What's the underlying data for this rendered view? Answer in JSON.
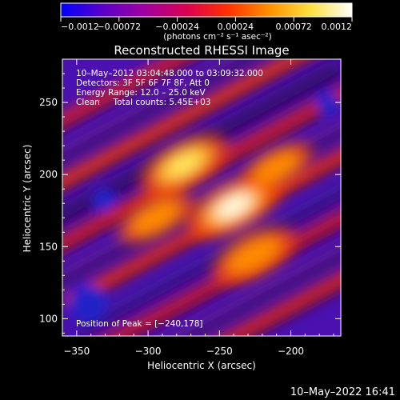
{
  "chart_data": {
    "type": "heatmap",
    "title": "Reconstructed RHESSI Image",
    "xlabel": "Heliocentric X (arcsec)",
    "ylabel": "Heliocentric Y (arcsec)",
    "xlim": [
      -360,
      -165
    ],
    "ylim": [
      88,
      280
    ],
    "x_ticks": [
      -350,
      -300,
      -250,
      -200
    ],
    "y_ticks": [
      100,
      150,
      200,
      250
    ],
    "x_tick_labels": [
      "−350",
      "−300",
      "−250",
      "−200"
    ],
    "y_tick_labels": [
      "100",
      "150",
      "200",
      "250"
    ],
    "colorbar": {
      "range": [
        -0.0012,
        0.0012
      ],
      "ticks": [
        -0.0012,
        -0.00072,
        -0.00024,
        0.00024,
        0.00072,
        0.0012
      ],
      "tick_labels": [
        "−0.0012",
        "−0.00072",
        "−0.00024",
        "0.00024",
        "0.00072",
        "0.0012"
      ],
      "unit_label": "(photons cm⁻² s⁻¹ asec⁻²)",
      "colors": [
        "#0000ff",
        "#5a00c8",
        "#a000a0",
        "#d80050",
        "#ff3000",
        "#ff9000",
        "#ffe040",
        "#ffffff"
      ]
    },
    "annotations": [
      "10–May–2012 03:04:48.000 to 03:09:32.000",
      "Detectors: 3F 5F 6F 7F 8F, Att 0",
      "Energy Range: 12.0 – 25.0 keV",
      "Clean     Total counts: 5.45E+03"
    ],
    "peak": {
      "label": "Position of Peak = [−240,178]",
      "x": -240,
      "y": 178,
      "value": 0.0012
    },
    "sources": [
      {
        "x": -240,
        "y": 178,
        "value": 0.0012
      },
      {
        "x": -275,
        "y": 207,
        "value": 0.001
      },
      {
        "x": -226,
        "y": 144,
        "value": 0.00085
      },
      {
        "x": -295,
        "y": 170,
        "value": 0.0006
      },
      {
        "x": -210,
        "y": 205,
        "value": 0.0005
      }
    ]
  },
  "footer": {
    "timestamp": "10–May–2022 16:41"
  }
}
